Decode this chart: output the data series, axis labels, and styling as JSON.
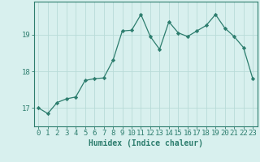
{
  "x": [
    0,
    1,
    2,
    3,
    4,
    5,
    6,
    7,
    8,
    9,
    10,
    11,
    12,
    13,
    14,
    15,
    16,
    17,
    18,
    19,
    20,
    21,
    22,
    23
  ],
  "y": [
    17.0,
    16.85,
    17.15,
    17.25,
    17.3,
    17.75,
    17.8,
    17.82,
    18.3,
    19.1,
    19.12,
    19.55,
    18.95,
    18.6,
    19.35,
    19.05,
    18.95,
    19.1,
    19.25,
    19.55,
    19.18,
    18.95,
    18.65,
    17.8
  ],
  "line_color": "#2d7d6e",
  "marker": "D",
  "marker_size": 2.2,
  "bg_color": "#d8f0ee",
  "grid_color": "#b8dbd8",
  "tick_color": "#2d7d6e",
  "xlabel": "Humidex (Indice chaleur)",
  "yticks": [
    17,
    18,
    19
  ],
  "ylim": [
    16.5,
    19.9
  ],
  "xlim": [
    -0.5,
    23.5
  ],
  "xlabel_fontsize": 7,
  "tick_fontsize": 6.5,
  "linewidth": 0.9
}
